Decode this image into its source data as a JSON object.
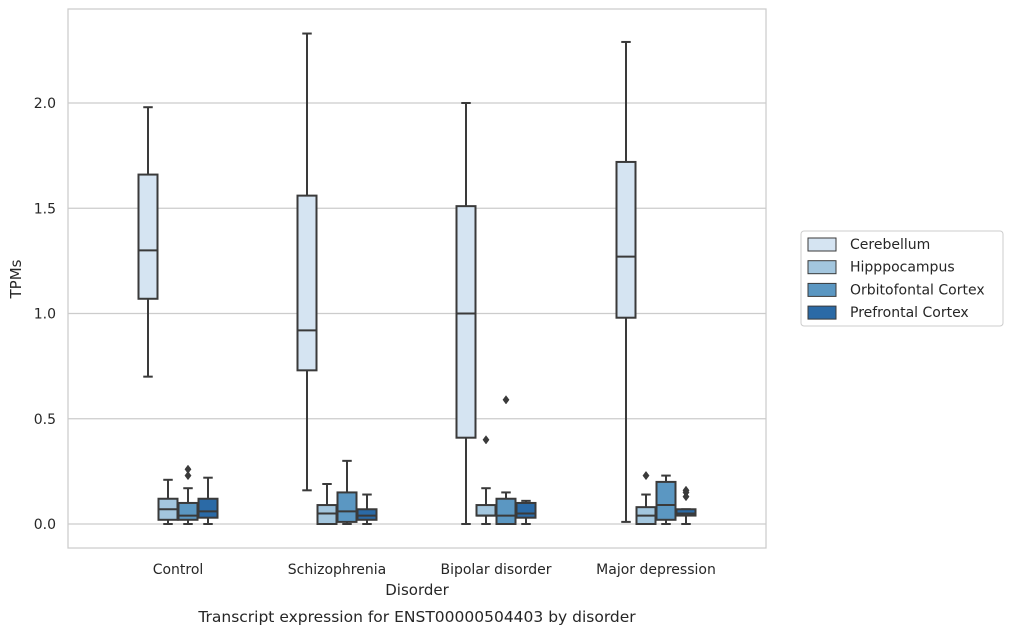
{
  "chart_data": {
    "type": "box",
    "title": "",
    "caption": "Transcript expression for ENST00000504403 by disorder",
    "xlabel": "Disorder",
    "ylabel": "TPMs",
    "ylim": [
      -0.11,
      2.45
    ],
    "yticks": [
      0.0,
      0.5,
      1.0,
      1.5,
      2.0
    ],
    "ytick_labels": [
      "0.0",
      "0.5",
      "1.0",
      "1.5",
      "2.0"
    ],
    "grid": "horizontal",
    "legend_position": "right",
    "categories": [
      "Control",
      "Schizophrenia",
      "Bipolar disorder",
      "Major depression"
    ],
    "series": [
      {
        "name": "Cerebellum",
        "color": "#d5e4f2",
        "boxes": [
          {
            "whislo": 0.7,
            "q1": 1.07,
            "med": 1.3,
            "q3": 1.66,
            "whishi": 1.98,
            "fliers": []
          },
          {
            "whislo": 0.16,
            "q1": 0.73,
            "med": 0.92,
            "q3": 1.56,
            "whishi": 2.33,
            "fliers": []
          },
          {
            "whislo": 0.0,
            "q1": 0.41,
            "med": 1.0,
            "q3": 1.51,
            "whishi": 2.0,
            "fliers": []
          },
          {
            "whislo": 0.01,
            "q1": 0.98,
            "med": 1.27,
            "q3": 1.72,
            "whishi": 2.29,
            "fliers": []
          }
        ]
      },
      {
        "name": "Hipppocampus",
        "color": "#a3c6de",
        "boxes": [
          {
            "whislo": 0.0,
            "q1": 0.02,
            "med": 0.07,
            "q3": 0.12,
            "whishi": 0.21,
            "fliers": []
          },
          {
            "whislo": 0.0,
            "q1": 0.0,
            "med": 0.05,
            "q3": 0.09,
            "whishi": 0.19,
            "fliers": []
          },
          {
            "whislo": 0.0,
            "q1": 0.04,
            "med": 0.04,
            "q3": 0.09,
            "whishi": 0.17,
            "fliers": [
              0.4
            ]
          },
          {
            "whislo": 0.0,
            "q1": 0.0,
            "med": 0.04,
            "q3": 0.08,
            "whishi": 0.14,
            "fliers": [
              0.23
            ]
          }
        ]
      },
      {
        "name": "Orbitofontal Cortex",
        "color": "#5b97c2",
        "boxes": [
          {
            "whislo": 0.0,
            "q1": 0.02,
            "med": 0.04,
            "q3": 0.1,
            "whishi": 0.17,
            "fliers": [
              0.23,
              0.26
            ]
          },
          {
            "whislo": 0.0,
            "q1": 0.01,
            "med": 0.06,
            "q3": 0.15,
            "whishi": 0.3,
            "fliers": []
          },
          {
            "whislo": 0.0,
            "q1": 0.0,
            "med": 0.04,
            "q3": 0.12,
            "whishi": 0.15,
            "fliers": [
              0.59
            ]
          },
          {
            "whislo": 0.0,
            "q1": 0.02,
            "med": 0.09,
            "q3": 0.2,
            "whishi": 0.23,
            "fliers": []
          }
        ]
      },
      {
        "name": "Prefrontal Cortex",
        "color": "#2b6aa6",
        "boxes": [
          {
            "whislo": 0.0,
            "q1": 0.03,
            "med": 0.06,
            "q3": 0.12,
            "whishi": 0.22,
            "fliers": []
          },
          {
            "whislo": 0.0,
            "q1": 0.02,
            "med": 0.04,
            "q3": 0.07,
            "whishi": 0.14,
            "fliers": []
          },
          {
            "whislo": 0.0,
            "q1": 0.03,
            "med": 0.05,
            "q3": 0.1,
            "whishi": 0.11,
            "fliers": []
          },
          {
            "whislo": 0.0,
            "q1": 0.04,
            "med": 0.05,
            "q3": 0.07,
            "whishi": 0.07,
            "fliers": [
              0.13,
              0.15,
              0.16
            ]
          }
        ]
      }
    ]
  }
}
